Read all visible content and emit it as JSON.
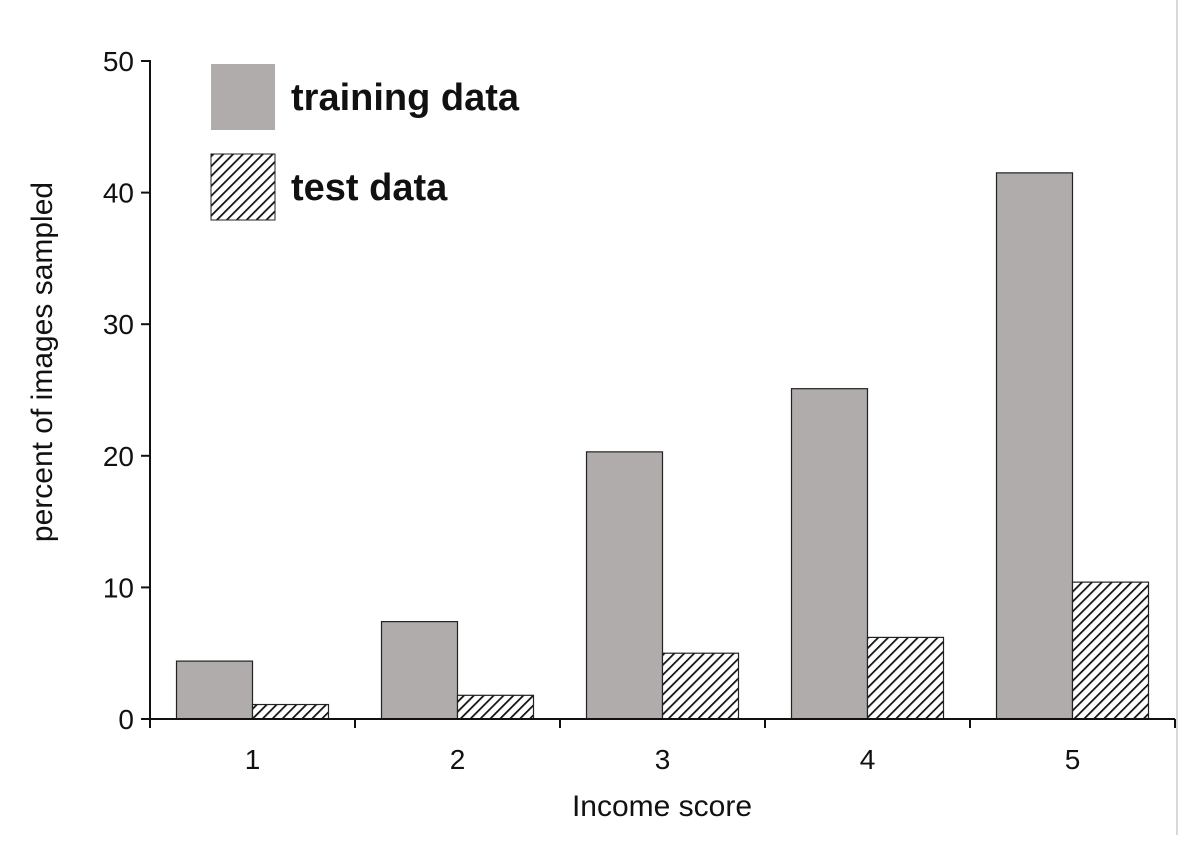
{
  "chart_data": {
    "type": "bar",
    "xlabel": "Income score",
    "ylabel": "percent of images sampled",
    "ylim": [
      0,
      50
    ],
    "yticks": [
      0,
      10,
      20,
      30,
      40,
      50
    ],
    "categories": [
      "1",
      "2",
      "3",
      "4",
      "5"
    ],
    "series": [
      {
        "name": "training data",
        "values": [
          4.4,
          7.4,
          20.3,
          25.1,
          41.5
        ],
        "fill": "#b0acab",
        "pattern": "solid"
      },
      {
        "name": "test data",
        "values": [
          1.1,
          1.8,
          5.0,
          6.2,
          10.4
        ],
        "fill": "#ffffff",
        "pattern": "diagonal-hatch"
      }
    ],
    "legend_position": "top-left",
    "grid": false
  }
}
